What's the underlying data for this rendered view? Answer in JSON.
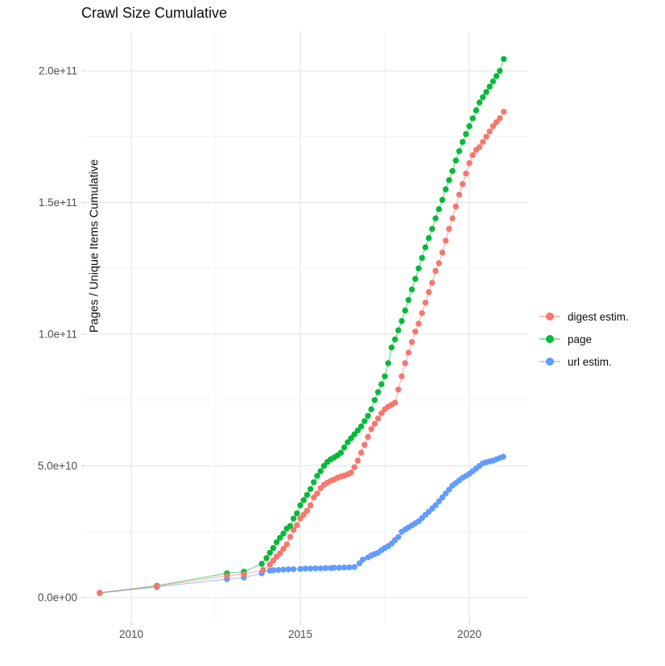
{
  "page": {
    "background": "#FFFFFF"
  },
  "chart_data": {
    "type": "line",
    "title": "Crawl Size Cumulative",
    "xlabel": "",
    "ylabel": "Pages / Unique Items Cumulative",
    "value_unit": "billions of pages / unique items (1e9)",
    "grid": "on",
    "legend_position": "right",
    "x_axis": {
      "ticks": [
        2010,
        2015,
        2020
      ],
      "tick_labels": [
        "2010",
        "2015",
        "2020"
      ],
      "minor_ticks": [
        2012.5,
        2017.5
      ],
      "range": [
        2008.6,
        2021.75
      ]
    },
    "y_axis": {
      "ticks": [
        0,
        50,
        100,
        150,
        200
      ],
      "tick_labels": [
        "0.0e+00",
        "5.0e+10",
        "1.0e+11",
        "1.5e+11",
        "2.0e+11"
      ],
      "minor_ticks": [
        25,
        75,
        125,
        175
      ],
      "range": [
        -9,
        215
      ]
    },
    "colors": {
      "grid_major": "#E3E3E3",
      "grid_minor": "#F1F1F1",
      "tick_text": "#4D4D4D"
    },
    "draw_order": [
      2,
      1,
      0
    ],
    "series": [
      {
        "name": "digest estim.",
        "color": "#F8766D",
        "points": [
          [
            2009.07,
            1.8
          ],
          [
            2010.76,
            4.3
          ],
          [
            2012.83,
            8.3
          ],
          [
            2013.33,
            8.9
          ],
          [
            2013.9,
            10.5
          ],
          [
            2014.1,
            12.5
          ],
          [
            2014.2,
            14.0
          ],
          [
            2014.3,
            15.5
          ],
          [
            2014.4,
            16.8
          ],
          [
            2014.5,
            18.5
          ],
          [
            2014.6,
            20.2
          ],
          [
            2014.7,
            23.0
          ],
          [
            2014.8,
            25.7
          ],
          [
            2014.9,
            27.5
          ],
          [
            2015.0,
            30.0
          ],
          [
            2015.1,
            31.5
          ],
          [
            2015.2,
            33.0
          ],
          [
            2015.3,
            35.0
          ],
          [
            2015.4,
            38.0
          ],
          [
            2015.5,
            39.5
          ],
          [
            2015.6,
            41.5
          ],
          [
            2015.7,
            42.8
          ],
          [
            2015.8,
            43.6
          ],
          [
            2015.9,
            44.3
          ],
          [
            2016.0,
            44.8
          ],
          [
            2016.1,
            45.5
          ],
          [
            2016.2,
            46.0
          ],
          [
            2016.3,
            46.3
          ],
          [
            2016.4,
            46.8
          ],
          [
            2016.5,
            47.5
          ],
          [
            2016.6,
            49.5
          ],
          [
            2016.7,
            52.0
          ],
          [
            2016.8,
            55.0
          ],
          [
            2016.9,
            58.0
          ],
          [
            2017.0,
            61.0
          ],
          [
            2017.1,
            64.0
          ],
          [
            2017.2,
            66.0
          ],
          [
            2017.3,
            68.0
          ],
          [
            2017.4,
            70.0
          ],
          [
            2017.5,
            71.5
          ],
          [
            2017.6,
            72.5
          ],
          [
            2017.7,
            73.2
          ],
          [
            2017.8,
            74.0
          ],
          [
            2017.9,
            79.0
          ],
          [
            2018.0,
            84.0
          ],
          [
            2018.1,
            89.0
          ],
          [
            2018.2,
            93.0
          ],
          [
            2018.3,
            97.0
          ],
          [
            2018.4,
            101.0
          ],
          [
            2018.5,
            104.0
          ],
          [
            2018.6,
            108.0
          ],
          [
            2018.7,
            112.0
          ],
          [
            2018.8,
            116.0
          ],
          [
            2018.9,
            119.5
          ],
          [
            2019.0,
            124.0
          ],
          [
            2019.1,
            127.0
          ],
          [
            2019.2,
            131.0
          ],
          [
            2019.3,
            135.5
          ],
          [
            2019.4,
            140.0
          ],
          [
            2019.5,
            144.0
          ],
          [
            2019.6,
            148.5
          ],
          [
            2019.7,
            153.0
          ],
          [
            2019.8,
            157.0
          ],
          [
            2019.9,
            161.0
          ],
          [
            2020.0,
            165.0
          ],
          [
            2020.1,
            168.0
          ],
          [
            2020.2,
            170.0
          ],
          [
            2020.3,
            171.0
          ],
          [
            2020.4,
            173.0
          ],
          [
            2020.5,
            175.0
          ],
          [
            2020.6,
            177.0
          ],
          [
            2020.7,
            179.0
          ],
          [
            2020.8,
            180.5
          ],
          [
            2020.9,
            182.0
          ],
          [
            2021.02,
            184.5
          ]
        ]
      },
      {
        "name": "page",
        "color": "#00BA38",
        "points": [
          [
            2009.07,
            1.8
          ],
          [
            2010.76,
            4.5
          ],
          [
            2012.83,
            9.2
          ],
          [
            2013.33,
            9.8
          ],
          [
            2013.86,
            12.8
          ],
          [
            2014.0,
            15.0
          ],
          [
            2014.1,
            17.0
          ],
          [
            2014.2,
            18.8
          ],
          [
            2014.3,
            21.0
          ],
          [
            2014.4,
            22.7
          ],
          [
            2014.5,
            24.3
          ],
          [
            2014.6,
            26.2
          ],
          [
            2014.7,
            27.2
          ],
          [
            2014.8,
            30.0
          ],
          [
            2014.9,
            32.0
          ],
          [
            2015.0,
            35.0
          ],
          [
            2015.1,
            37.0
          ],
          [
            2015.2,
            39.0
          ],
          [
            2015.3,
            41.2
          ],
          [
            2015.4,
            43.8
          ],
          [
            2015.5,
            46.2
          ],
          [
            2015.6,
            48.0
          ],
          [
            2015.7,
            50.0
          ],
          [
            2015.8,
            51.5
          ],
          [
            2015.9,
            52.5
          ],
          [
            2016.0,
            53.2
          ],
          [
            2016.1,
            54.0
          ],
          [
            2016.2,
            55.0
          ],
          [
            2016.3,
            57.0
          ],
          [
            2016.4,
            59.0
          ],
          [
            2016.5,
            60.5
          ],
          [
            2016.6,
            62.0
          ],
          [
            2016.7,
            63.5
          ],
          [
            2016.8,
            65.0
          ],
          [
            2016.9,
            67.0
          ],
          [
            2017.0,
            69.0
          ],
          [
            2017.1,
            71.5
          ],
          [
            2017.2,
            75.0
          ],
          [
            2017.3,
            78.0
          ],
          [
            2017.4,
            81.0
          ],
          [
            2017.5,
            84.0
          ],
          [
            2017.6,
            89.0
          ],
          [
            2017.7,
            95.0
          ],
          [
            2017.8,
            98.0
          ],
          [
            2017.9,
            101.5
          ],
          [
            2018.0,
            105.0
          ],
          [
            2018.1,
            109.0
          ],
          [
            2018.2,
            113.0
          ],
          [
            2018.3,
            117.0
          ],
          [
            2018.4,
            121.0
          ],
          [
            2018.5,
            125.0
          ],
          [
            2018.6,
            129.0
          ],
          [
            2018.7,
            133.0
          ],
          [
            2018.8,
            136.5
          ],
          [
            2018.9,
            140.0
          ],
          [
            2019.0,
            144.0
          ],
          [
            2019.1,
            147.5
          ],
          [
            2019.2,
            151.0
          ],
          [
            2019.3,
            155.0
          ],
          [
            2019.4,
            158.5
          ],
          [
            2019.5,
            162.0
          ],
          [
            2019.6,
            166.0
          ],
          [
            2019.7,
            169.5
          ],
          [
            2019.8,
            173.0
          ],
          [
            2019.9,
            176.0
          ],
          [
            2020.0,
            179.0
          ],
          [
            2020.1,
            182.0
          ],
          [
            2020.2,
            185.0
          ],
          [
            2020.3,
            188.0
          ],
          [
            2020.4,
            190.0
          ],
          [
            2020.5,
            192.0
          ],
          [
            2020.6,
            194.0
          ],
          [
            2020.7,
            196.0
          ],
          [
            2020.8,
            198.0
          ],
          [
            2020.9,
            200.0
          ],
          [
            2021.02,
            204.5
          ]
        ]
      },
      {
        "name": "url estim.",
        "color": "#619CFF",
        "points": [
          [
            2009.07,
            1.7
          ],
          [
            2010.76,
            4.0
          ],
          [
            2012.83,
            7.0
          ],
          [
            2013.33,
            7.6
          ],
          [
            2013.86,
            9.2
          ],
          [
            2014.1,
            10.2
          ],
          [
            2014.2,
            10.4
          ],
          [
            2014.35,
            10.5
          ],
          [
            2014.5,
            10.6
          ],
          [
            2014.65,
            10.7
          ],
          [
            2014.8,
            10.8
          ],
          [
            2015.0,
            10.9
          ],
          [
            2015.15,
            11.0
          ],
          [
            2015.3,
            11.0
          ],
          [
            2015.45,
            11.1
          ],
          [
            2015.6,
            11.1
          ],
          [
            2015.75,
            11.2
          ],
          [
            2015.9,
            11.2
          ],
          [
            2016.0,
            11.3
          ],
          [
            2016.15,
            11.3
          ],
          [
            2016.3,
            11.4
          ],
          [
            2016.45,
            11.5
          ],
          [
            2016.6,
            11.6
          ],
          [
            2016.75,
            13.0
          ],
          [
            2016.85,
            14.4
          ],
          [
            2017.0,
            15.2
          ],
          [
            2017.1,
            16.0
          ],
          [
            2017.2,
            16.5
          ],
          [
            2017.3,
            17.0
          ],
          [
            2017.4,
            18.0
          ],
          [
            2017.5,
            18.8
          ],
          [
            2017.6,
            19.5
          ],
          [
            2017.7,
            20.5
          ],
          [
            2017.8,
            21.8
          ],
          [
            2017.9,
            23.0
          ],
          [
            2018.0,
            25.0
          ],
          [
            2018.1,
            25.8
          ],
          [
            2018.2,
            26.6
          ],
          [
            2018.3,
            27.4
          ],
          [
            2018.4,
            28.2
          ],
          [
            2018.5,
            29.0
          ],
          [
            2018.6,
            30.2
          ],
          [
            2018.7,
            31.4
          ],
          [
            2018.8,
            32.6
          ],
          [
            2018.9,
            33.8
          ],
          [
            2019.0,
            35.0
          ],
          [
            2019.1,
            36.5
          ],
          [
            2019.2,
            38.0
          ],
          [
            2019.3,
            39.5
          ],
          [
            2019.4,
            41.0
          ],
          [
            2019.5,
            42.5
          ],
          [
            2019.6,
            43.5
          ],
          [
            2019.7,
            44.5
          ],
          [
            2019.8,
            45.5
          ],
          [
            2019.9,
            46.2
          ],
          [
            2020.0,
            47.0
          ],
          [
            2020.1,
            48.0
          ],
          [
            2020.2,
            49.0
          ],
          [
            2020.3,
            50.0
          ],
          [
            2020.4,
            51.0
          ],
          [
            2020.5,
            51.4
          ],
          [
            2020.6,
            51.7
          ],
          [
            2020.7,
            52.0
          ],
          [
            2020.8,
            52.5
          ],
          [
            2020.9,
            53.0
          ],
          [
            2021.0,
            53.5
          ]
        ]
      }
    ]
  }
}
